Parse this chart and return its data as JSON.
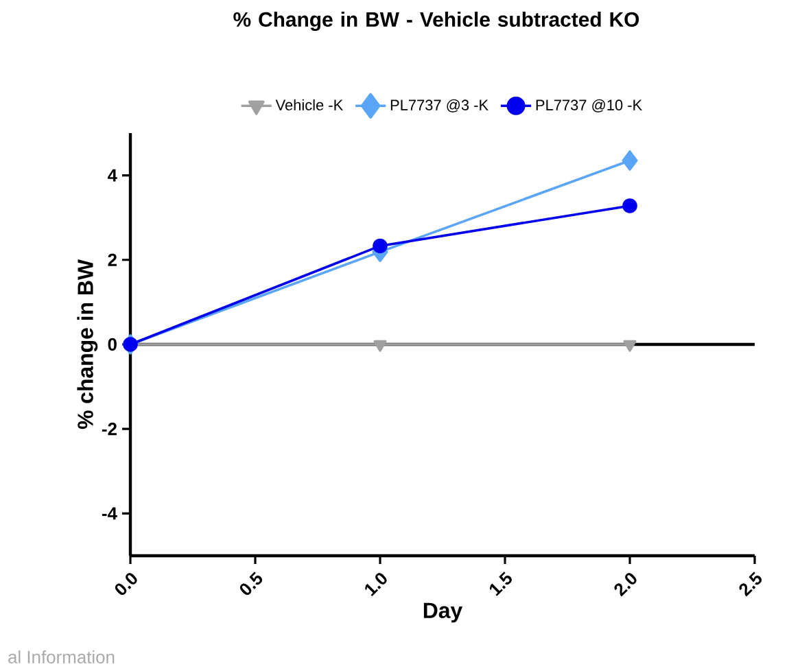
{
  "chart_data": {
    "type": "line",
    "title": "% Change in  BW - Vehicle subtracted KO",
    "xlabel": "Day",
    "ylabel": "% change in BW",
    "x": [
      0,
      1,
      2
    ],
    "series": [
      {
        "name": "Vehicle -K",
        "color": "#a0a0a0",
        "marker": "triangle",
        "values": [
          0,
          0,
          0
        ]
      },
      {
        "name": "PL7737 @3 -K",
        "color": "#5aa5f5",
        "marker": "diamond",
        "values": [
          0,
          2.19,
          4.35
        ]
      },
      {
        "name": "PL7737 @10 -K",
        "color": "#0000ee",
        "marker": "circle",
        "values": [
          0,
          2.33,
          3.28
        ]
      }
    ],
    "xlim": [
      0,
      2.5
    ],
    "ylim": [
      -5,
      5
    ],
    "xticks": [
      {
        "value": 0,
        "label": "0.0"
      },
      {
        "value": 0.5,
        "label": "0.5"
      },
      {
        "value": 1,
        "label": "1.0"
      },
      {
        "value": 1.5,
        "label": "1.5"
      },
      {
        "value": 2,
        "label": "2.0"
      },
      {
        "value": 2.5,
        "label": "2.5"
      }
    ],
    "yticks": [
      -4,
      -2,
      0,
      2,
      4
    ],
    "ref_lines": [
      {
        "axis": "y",
        "value": 0,
        "color": "#000000"
      }
    ],
    "legend": "top",
    "grid": false,
    "line_style": "solid",
    "annotations": [
      "al Information"
    ]
  }
}
